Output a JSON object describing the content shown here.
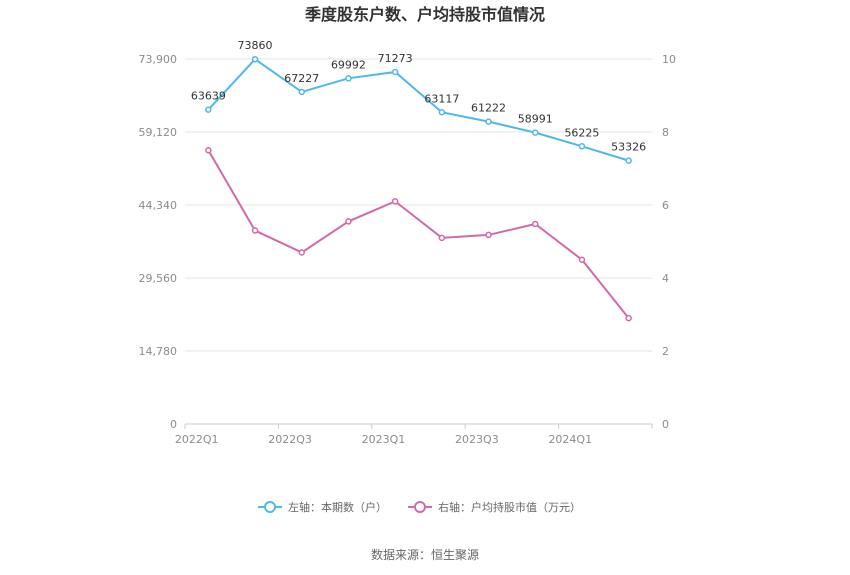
{
  "chart_data": {
    "type": "line",
    "title": "季度股东户数、户均持股市值情况",
    "x": [
      "2022Q1",
      "2022Q2",
      "2022Q3",
      "2022Q4",
      "2023Q1",
      "2023Q2",
      "2023Q3",
      "2023Q4",
      "2024Q1",
      "2024Q2"
    ],
    "x_tick_labels": [
      "2022Q1",
      "2022Q3",
      "2023Q1",
      "2023Q3",
      "2024Q1"
    ],
    "left_axis": {
      "ylim": [
        0,
        73900
      ],
      "ticks": [
        "0",
        "14,780",
        "29,560",
        "44,340",
        "59,120",
        "73,900"
      ]
    },
    "right_axis": {
      "ylim": [
        0,
        10
      ],
      "ticks": [
        "0",
        "2",
        "4",
        "6",
        "8",
        "10"
      ]
    },
    "series": [
      {
        "name": "左轴：本期数（户）",
        "axis": "left",
        "color": "#4fb8e8",
        "values": [
          63639,
          73860,
          67227,
          69992,
          71273,
          63117,
          61222,
          58991,
          56225,
          53326
        ],
        "labels": [
          "63639",
          "73860",
          "67227",
          "69992",
          "71273",
          "63117",
          "61222",
          "58991",
          "56225",
          "53326"
        ]
      },
      {
        "name": "右轴：户均持股市值（万元）",
        "axis": "right",
        "color": "#d36aa8",
        "values": [
          7.5,
          5.3,
          4.7,
          5.55,
          6.1,
          5.1,
          5.18,
          5.48,
          4.5,
          2.9
        ]
      }
    ],
    "grid": true,
    "legend": "bottom-center"
  },
  "source": "数据来源：恒生聚源"
}
